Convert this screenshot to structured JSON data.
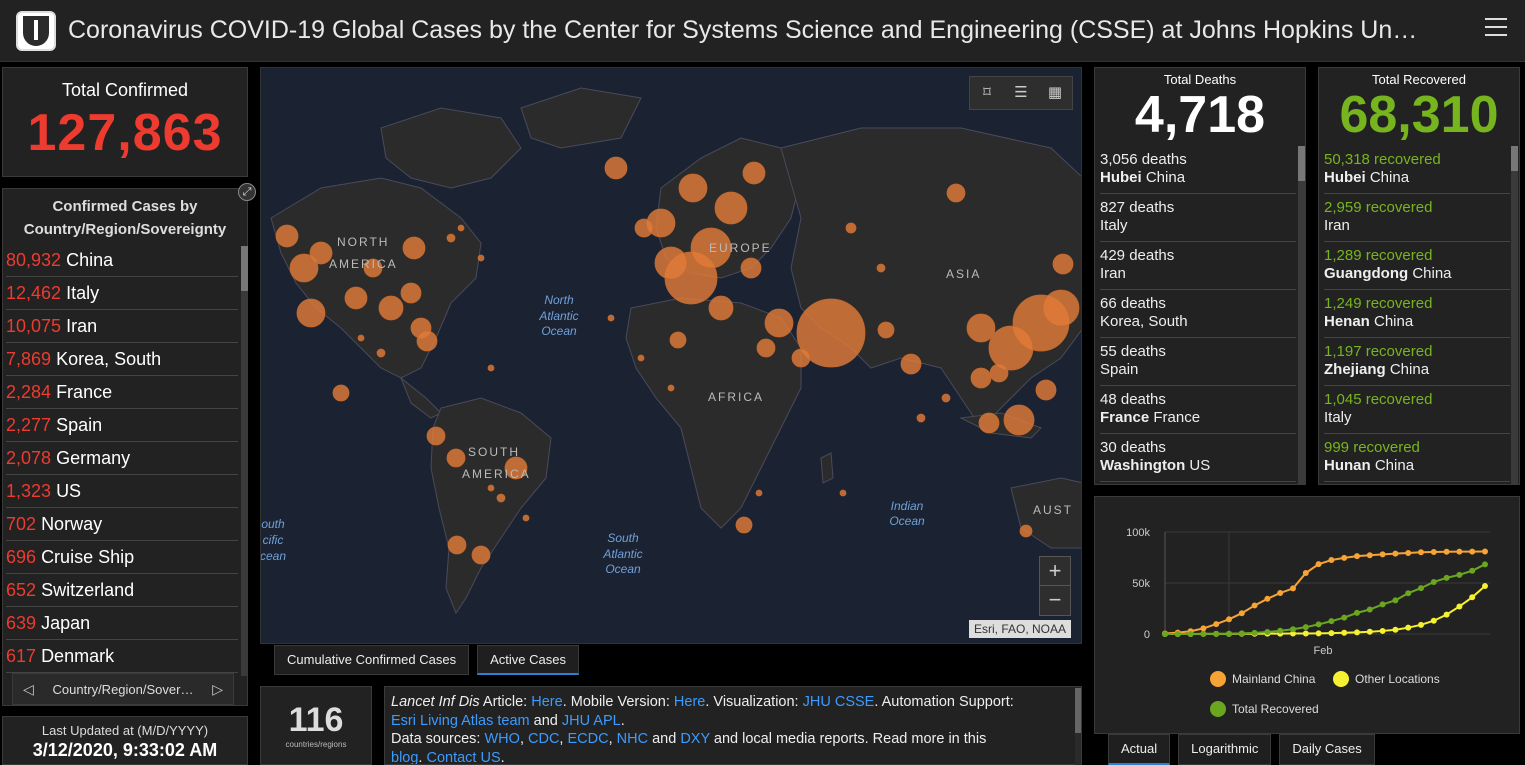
{
  "header": {
    "title": "Coronavirus COVID-19 Global Cases by the Center for Systems Science and Engineering (CSSE) at Johns Hopkins Un…"
  },
  "total_confirmed": {
    "label": "Total Confirmed",
    "value": "127,863"
  },
  "country_list": {
    "heading": "Confirmed Cases by Country/Region/Sovereignty",
    "heading_line1": "Confirmed Cases by",
    "heading_line2": "Country/Region/Sovereignty",
    "rows": [
      {
        "num": "80,932",
        "name": "China"
      },
      {
        "num": "12,462",
        "name": "Italy"
      },
      {
        "num": "10,075",
        "name": "Iran"
      },
      {
        "num": "7,869",
        "name": "Korea, South"
      },
      {
        "num": "2,284",
        "name": "France"
      },
      {
        "num": "2,277",
        "name": "Spain"
      },
      {
        "num": "2,078",
        "name": "Germany"
      },
      {
        "num": "1,323",
        "name": "US"
      },
      {
        "num": "702",
        "name": "Norway"
      },
      {
        "num": "696",
        "name": "Cruise Ship"
      },
      {
        "num": "652",
        "name": "Switzerland"
      },
      {
        "num": "639",
        "name": "Japan"
      },
      {
        "num": "617",
        "name": "Denmark"
      }
    ],
    "nav_label": "Country/Region/Sover…"
  },
  "last_updated": {
    "label": "Last Updated at (M/D/YYYY)",
    "value": "3/12/2020, 9:33:02 AM"
  },
  "map": {
    "labels": {
      "north_america_1": "NORTH",
      "north_america_2": "AMERICA",
      "europe": "EUROPE",
      "asia": "ASIA",
      "africa": "AFRICA",
      "south_america_1": "SOUTH",
      "south_america_2": "AMERICA",
      "aust": "AUST",
      "north_atlantic_1": "North",
      "north_atlantic_2": "Atlantic",
      "north_atlantic_3": "Ocean",
      "south_atlantic_1": "South",
      "south_atlantic_2": "Atlantic",
      "south_atlantic_3": "Ocean",
      "indian_1": "Indian",
      "indian_2": "Ocean",
      "south_pacific_1": "outh",
      "south_pacific_2": "cific",
      "south_pacific_3": "cean"
    },
    "attribution": "Esri, FAO, NOAA",
    "zoom_in": "+",
    "zoom_out": "−",
    "tabs": [
      "Cumulative Confirmed Cases",
      "Active Cases"
    ]
  },
  "countries_count": {
    "value": "116",
    "label": "countries/regions"
  },
  "info": {
    "lancet": "Lancet Inf Dis",
    "article": " Article: ",
    "here1": "Here",
    "mobile": ". Mobile Version: ",
    "here2": "Here",
    "viz": ". Visualization: ",
    "jhu_csse": "JHU CSSE",
    "automation": ". Automation Support: ",
    "esri": "Esri Living Atlas team",
    "and1": " and ",
    "jhu_apl": "JHU APL",
    "period": ".",
    "sources": "Data sources: ",
    "who": "WHO",
    "comma": ", ",
    "cdc": "CDC",
    "ecdc": "ECDC",
    "nhc": "NHC",
    "and2": " and ",
    "dxy": "DXY",
    "local": " and local media reports. Read more in this ",
    "blog": "blog",
    "contact": "Contact US",
    "end": "."
  },
  "deaths": {
    "label": "Total Deaths",
    "value": "4,718",
    "rows": [
      {
        "count": "3,056 deaths",
        "bold": "Hubei",
        "place": " China"
      },
      {
        "count": "827 deaths",
        "bold": "",
        "place": " Italy"
      },
      {
        "count": "429 deaths",
        "bold": "",
        "place": " Iran"
      },
      {
        "count": "66 deaths",
        "bold": "",
        "place": " Korea, South"
      },
      {
        "count": "55 deaths",
        "bold": "",
        "place": " Spain"
      },
      {
        "count": "48 deaths",
        "bold": "France",
        "place": " France"
      },
      {
        "count": "30 deaths",
        "bold": "Washington",
        "place": " US"
      }
    ]
  },
  "recovered": {
    "label": "Total Recovered",
    "value": "68,310",
    "rows": [
      {
        "count": "50,318 recovered",
        "bold": "Hubei",
        "place": " China"
      },
      {
        "count": "2,959 recovered",
        "bold": "",
        "place": " Iran"
      },
      {
        "count": "1,289 recovered",
        "bold": "Guangdong",
        "place": " China"
      },
      {
        "count": "1,249 recovered",
        "bold": "Henan",
        "place": " China"
      },
      {
        "count": "1,197 recovered",
        "bold": "Zhejiang",
        "place": " China"
      },
      {
        "count": "1,045 recovered",
        "bold": "",
        "place": " Italy"
      },
      {
        "count": "999 recovered",
        "bold": "Hunan",
        "place": " China"
      }
    ]
  },
  "graph": {
    "tabs": [
      "Actual",
      "Logarithmic",
      "Daily Cases"
    ]
  },
  "chart_data": {
    "type": "line",
    "x": [
      "1/22",
      "1/24",
      "1/26",
      "1/28",
      "1/30",
      "2/1",
      "2/3",
      "2/5",
      "2/7",
      "2/9",
      "2/11",
      "2/13",
      "2/15",
      "2/17",
      "2/19",
      "2/21",
      "2/23",
      "2/25",
      "2/27",
      "2/29",
      "3/2",
      "3/4",
      "3/6",
      "3/8",
      "3/10",
      "3/12"
    ],
    "xticks": [
      "Feb"
    ],
    "yticks": [
      "0",
      "50k",
      "100k"
    ],
    "ylim": [
      0,
      100000
    ],
    "series": [
      {
        "name": "Mainland China",
        "color": "#f7a435",
        "values": [
          550,
          1400,
          2700,
          5500,
          9700,
          14400,
          20400,
          28000,
          34500,
          40200,
          44700,
          59800,
          68500,
          72500,
          74600,
          76300,
          77200,
          78100,
          78800,
          79400,
          80100,
          80400,
          80600,
          80700,
          80800,
          80900
        ]
      },
      {
        "name": "Other Locations",
        "color": "#f5f032",
        "values": [
          10,
          20,
          50,
          80,
          130,
          160,
          200,
          260,
          330,
          380,
          430,
          500,
          650,
          900,
          1200,
          1600,
          2200,
          3000,
          4200,
          6200,
          9000,
          13000,
          19000,
          27000,
          36000,
          47000
        ]
      },
      {
        "name": "Total Recovered",
        "color": "#6aa620",
        "values": [
          30,
          40,
          50,
          100,
          140,
          280,
          600,
          1100,
          2000,
          3200,
          4700,
          6700,
          9400,
          12600,
          16100,
          20700,
          24000,
          29000,
          33000,
          40000,
          45000,
          51000,
          55000,
          58000,
          62000,
          68310
        ]
      }
    ]
  }
}
